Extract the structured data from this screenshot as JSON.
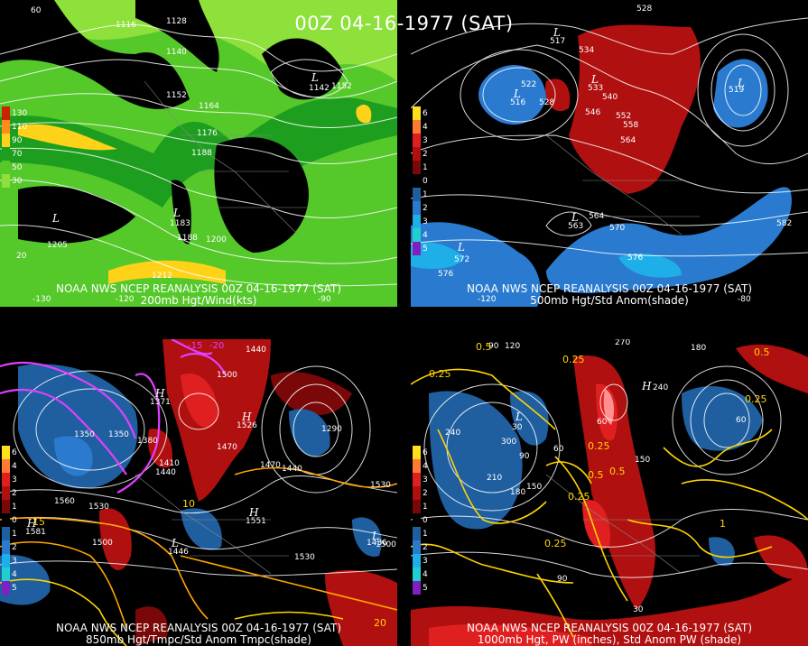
{
  "title": "00Z 04-16-1977 (SAT)",
  "panels": [
    {
      "id": "p1",
      "caption_line1": "NOAA NWS NCEP REANALYSIS 00Z 04-16-1977 (SAT)",
      "caption_line2": "200mb Hgt/Wind(kts)",
      "legend": [
        {
          "label": "130",
          "color": "#cc2200"
        },
        {
          "label": "110",
          "color": "#ff8c1a"
        },
        {
          "label": "90",
          "color": "#ffd21a"
        },
        {
          "label": "70",
          "color": "#1e9e1e"
        },
        {
          "label": "50",
          "color": "#55c82a"
        },
        {
          "label": "30",
          "color": "#8ee03a"
        }
      ],
      "contour_labels": [
        "1128",
        "1116",
        "1140",
        "1152",
        "1152",
        "1164",
        "1176",
        "1188",
        "1200",
        "1212"
      ],
      "lows": [
        {
          "symbol": "L",
          "value": "1205"
        },
        {
          "symbol": "L",
          "value": "1183"
        },
        {
          "symbol": "L",
          "value": "1142"
        }
      ],
      "axis_labels": [
        "60",
        "20",
        "-130",
        "-120",
        "-90"
      ]
    },
    {
      "id": "p2",
      "caption_line1": "NOAA NWS NCEP REANALYSIS 00Z 04-16-1977 (SAT)",
      "caption_line2": "500mb Hgt/Std Anom(shade)",
      "legend": [
        {
          "label": "6",
          "color": "#ffe01a"
        },
        {
          "label": "4",
          "color": "#ff7a33"
        },
        {
          "label": "3",
          "color": "#e02020"
        },
        {
          "label": "2",
          "color": "#b01010"
        },
        {
          "label": "1",
          "color": "#7a0808"
        },
        {
          "label": "0",
          "color": "#000000"
        },
        {
          "label": "1",
          "color": "#1f5fa0"
        },
        {
          "label": "2",
          "color": "#2a7bd0"
        },
        {
          "label": "3",
          "color": "#1eaee8"
        },
        {
          "label": "4",
          "color": "#20d0d0"
        },
        {
          "label": "5",
          "color": "#8020c0"
        }
      ],
      "contour_labels": [
        "528",
        "522",
        "528",
        "534",
        "540",
        "546",
        "552",
        "558",
        "564",
        "564",
        "570",
        "576",
        "576",
        "582"
      ],
      "lows": [
        {
          "symbol": "L",
          "value": "517"
        },
        {
          "symbol": "L",
          "value": "516"
        },
        {
          "symbol": "L",
          "value": "519"
        },
        {
          "symbol": "L",
          "value": "533"
        },
        {
          "symbol": "L",
          "value": "563"
        },
        {
          "symbol": "L",
          "value": "572"
        }
      ],
      "axis_labels": [
        "-120",
        "-80"
      ]
    },
    {
      "id": "p3",
      "caption_line1": "NOAA NWS NCEP REANALYSIS 00Z 04-16-1977 (SAT)",
      "caption_line2": "850mb Hgt/Tmpc/Std Anom Tmpc(shade)",
      "legend": [
        {
          "label": "6",
          "color": "#ffe01a"
        },
        {
          "label": "4",
          "color": "#ff7a33"
        },
        {
          "label": "3",
          "color": "#e02020"
        },
        {
          "label": "2",
          "color": "#b01010"
        },
        {
          "label": "1",
          "color": "#7a0808"
        },
        {
          "label": "0",
          "color": "#000000"
        },
        {
          "label": "1",
          "color": "#1f5fa0"
        },
        {
          "label": "2",
          "color": "#2a7bd0"
        },
        {
          "label": "3",
          "color": "#1eaee8"
        },
        {
          "label": "4",
          "color": "#20d0d0"
        },
        {
          "label": "5",
          "color": "#8020c0"
        }
      ],
      "contour_labels": [
        "1440",
        "1500",
        "1350",
        "1380",
        "1470",
        "1410",
        "1440",
        "1470",
        "1440",
        "1290",
        "1350",
        "1560",
        "1530",
        "1500",
        "1530",
        "1500",
        "1530"
      ],
      "temp_labels": [
        "-15",
        "-20",
        "10",
        "15",
        "20"
      ],
      "highs": [
        {
          "symbol": "H",
          "value": "1581"
        },
        {
          "symbol": "H",
          "value": "1551"
        },
        {
          "symbol": "H",
          "value": "1526"
        },
        {
          "symbol": "H",
          "value": "1371"
        }
      ],
      "lows": [
        {
          "symbol": "L",
          "value": "1446"
        },
        {
          "symbol": "L",
          "value": "1436"
        }
      ]
    },
    {
      "id": "p4",
      "caption_line1": "NOAA NWS NCEP REANALYSIS 00Z 04-16-1977 (SAT)",
      "caption_line2": "1000mb Hgt, PW (inches), Std Anom PW (shade)",
      "legend": [
        {
          "label": "6",
          "color": "#ffe01a"
        },
        {
          "label": "4",
          "color": "#ff7a33"
        },
        {
          "label": "3",
          "color": "#e02020"
        },
        {
          "label": "2",
          "color": "#b01010"
        },
        {
          "label": "1",
          "color": "#7a0808"
        },
        {
          "label": "0",
          "color": "#000000"
        },
        {
          "label": "1",
          "color": "#1f5fa0"
        },
        {
          "label": "2",
          "color": "#2a7bd0"
        },
        {
          "label": "3",
          "color": "#1eaee8"
        },
        {
          "label": "4",
          "color": "#20d0d0"
        },
        {
          "label": "5",
          "color": "#8020c0"
        }
      ],
      "contour_labels": [
        "90",
        "120",
        "270",
        "180",
        "240",
        "210",
        "180",
        "150",
        "300",
        "90",
        "60",
        "150",
        "90",
        "60",
        "60",
        "30"
      ],
      "pw_labels": [
        "0.5",
        "0.25",
        "0.25",
        "0.5",
        "0.25",
        "0.5",
        "0.25",
        "1",
        "0.25",
        "0.25",
        "0.5"
      ],
      "highs": [
        {
          "symbol": "H",
          "value": "240"
        }
      ],
      "lows": [
        {
          "symbol": "L",
          "value": "30"
        }
      ]
    }
  ]
}
